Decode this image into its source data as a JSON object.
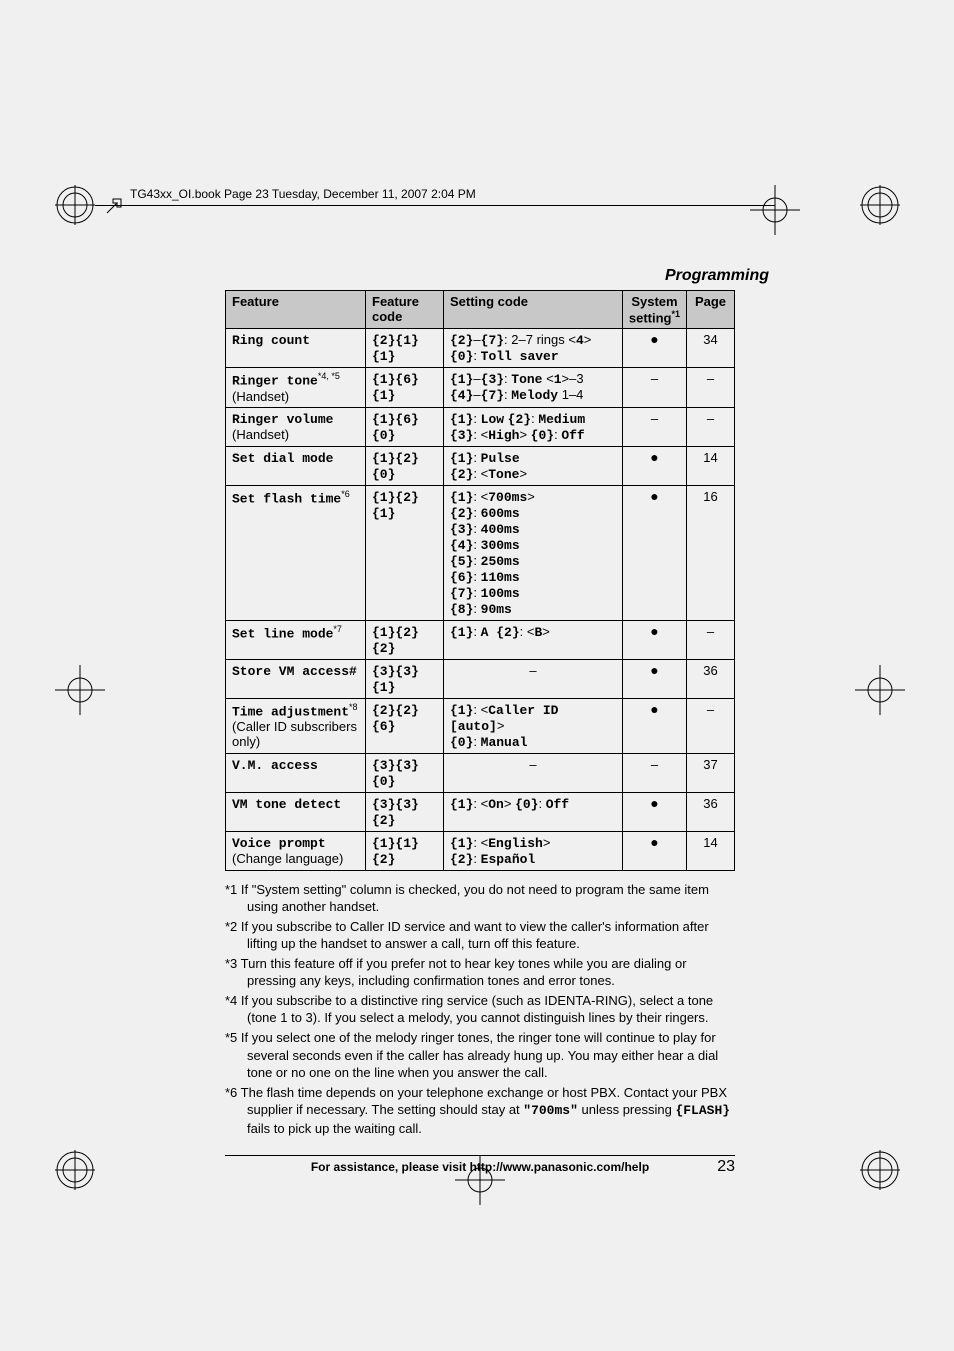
{
  "bookMarker": "TG43xx_OI.book  Page 23  Tuesday, December 11, 2007  2:04 PM",
  "sectionTitle": "Programming",
  "headers": {
    "feature": "Feature",
    "featureCode": "Feature code",
    "settingCode": "Setting code",
    "system": "System setting",
    "systemSup": "*1",
    "page": "Page"
  },
  "rows": [
    {
      "feature": "Ring count",
      "featSub": "",
      "featSup": "",
      "code": "{2}{1}{1}",
      "setting": "{2}–{7}: 2–7 rings <4>\n{0}: Toll saver",
      "sys": "●",
      "page": "34"
    },
    {
      "feature": "Ringer tone",
      "featSub": "(Handset)",
      "featSup": "*4, *5",
      "code": "{1}{6}{1}",
      "setting": "{1}–{3}: Tone <1>–3\n{4}–{7}: Melody 1–4",
      "sys": "–",
      "page": "–"
    },
    {
      "feature": "Ringer volume",
      "featSub": "(Handset)",
      "featSup": "",
      "code": "{1}{6}{0}",
      "setting": "{1}: Low {2}: Medium\n{3}: <High> {0}: Off",
      "sys": "–",
      "page": "–"
    },
    {
      "feature": "Set dial mode",
      "featSub": "",
      "featSup": "",
      "code": "{1}{2}{0}",
      "setting": "{1}: Pulse\n{2}: <Tone>",
      "sys": "●",
      "page": "14"
    },
    {
      "feature": "Set flash time",
      "featSub": "",
      "featSup": "*6",
      "code": "{1}{2}{1}",
      "setting": "{1}: <700ms>\n{2}: 600ms\n{3}: 400ms\n{4}: 300ms\n{5}: 250ms\n{6}: 110ms\n{7}: 100ms\n{8}: 90ms",
      "sys": "●",
      "page": "16"
    },
    {
      "feature": "Set line mode",
      "featSub": "",
      "featSup": "*7",
      "code": "{1}{2}{2}",
      "setting": "{1}: A {2}: <B>",
      "sys": "●",
      "page": "–"
    },
    {
      "feature": "Store VM access#",
      "featSub": "",
      "featSup": "",
      "code": "{3}{3}{1}",
      "setting": "–",
      "sys": "●",
      "page": "36"
    },
    {
      "feature": "Time adjustment",
      "featSub": "(Caller ID subscribers only)",
      "featSup": "*8",
      "code": "{2}{2}{6}",
      "setting": "{1}: <Caller ID  [auto]>\n{0}: Manual",
      "sys": "●",
      "page": "–"
    },
    {
      "feature": "V.M. access",
      "featSub": "",
      "featSup": "",
      "code": "{3}{3}{0}",
      "setting": "–",
      "sys": "–",
      "page": "37"
    },
    {
      "feature": "VM tone detect",
      "featSub": "",
      "featSup": "",
      "code": "{3}{3}{2}",
      "setting": "{1}: <On> {0}: Off",
      "sys": "●",
      "page": "36"
    },
    {
      "feature": "Voice prompt",
      "featSub": "(Change language)",
      "featSup": "",
      "code": "{1}{1}{2}",
      "setting": "{1}: <English>\n{2}: Español",
      "sys": "●",
      "page": "14"
    }
  ],
  "footnotes": [
    "*1 If \"System setting\" column is checked, you do not need to program the same item using another handset.",
    "*2 If you subscribe to Caller ID service and want to view the caller's information after lifting up the handset to answer a call, turn off this feature.",
    "*3 Turn this feature off if you prefer not to hear key tones while you are dialing or pressing any keys, including confirmation tones and error tones.",
    "*4 If you subscribe to a distinctive ring service (such as IDENTA-RING), select a tone (tone 1 to 3). If you select a melody, you cannot distinguish lines by their ringers.",
    "*5 If you select one of the melody ringer tones, the ringer tone will continue to play for several seconds even if the caller has already hung up. You may either hear a dial tone or no one on the line when you answer the call.",
    "*6 The flash time depends on your telephone exchange or host PBX. Contact your PBX supplier if necessary. The setting should stay at \"700ms\" unless pressing {FLASH} fails to pick up the waiting call."
  ],
  "footer": "For assistance, please visit http://www.panasonic.com/help",
  "pageNum": "23"
}
